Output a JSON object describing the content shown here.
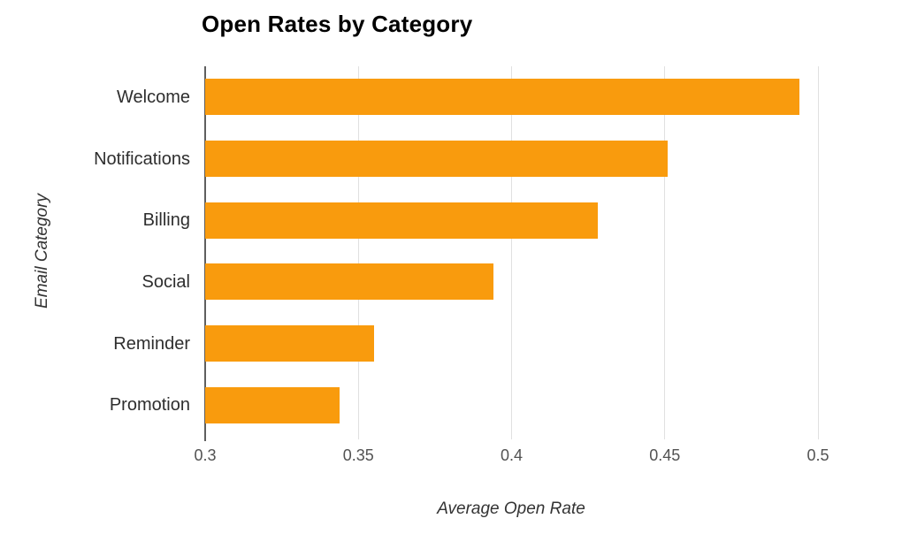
{
  "chart_data": {
    "type": "bar",
    "orientation": "horizontal",
    "title": "Open Rates by Category",
    "xlabel": "Average Open Rate",
    "ylabel": "Email Category",
    "categories": [
      "Welcome",
      "Notifications",
      "Billing",
      "Social",
      "Reminder",
      "Promotion"
    ],
    "values": [
      0.494,
      0.451,
      0.428,
      0.394,
      0.355,
      0.344
    ],
    "xlim": [
      0.3,
      0.5
    ],
    "xticks": [
      0.3,
      0.35,
      0.4,
      0.45,
      0.5
    ],
    "xtick_labels": [
      "0.3",
      "0.35",
      "0.4",
      "0.45",
      "0.5"
    ],
    "grid": true,
    "legend": false
  },
  "colors": {
    "bar": "#F99B0D",
    "gridline": "#e0e0e0",
    "axis_line": "#5f5f5f",
    "title_text": "#000000",
    "category_text": "#2e2e2e",
    "tick_text": "#525252"
  }
}
